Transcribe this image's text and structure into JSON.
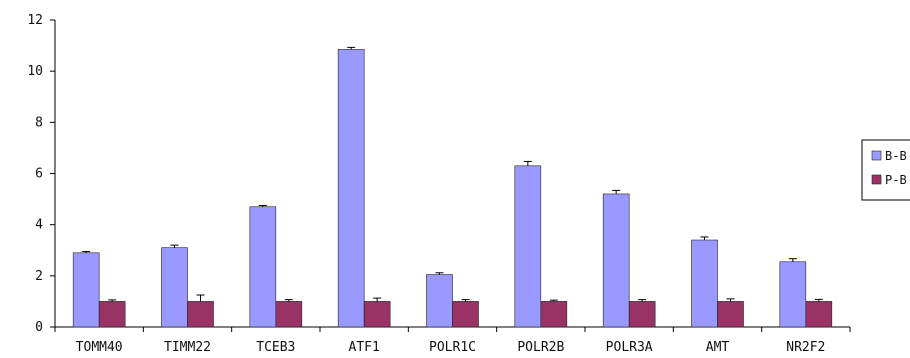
{
  "chart_data": {
    "type": "bar",
    "categories": [
      "TOMM40",
      "TIMM22",
      "TCEB3",
      "ATF1",
      "POLR1C",
      "POLR2B",
      "POLR3A",
      "AMT",
      "NR2F2"
    ],
    "series": [
      {
        "name": "B-B",
        "color": "#9999ff",
        "values": [
          2.9,
          3.1,
          4.7,
          10.85,
          2.05,
          6.3,
          5.2,
          3.4,
          2.55
        ],
        "errors": [
          0.05,
          0.1,
          0.05,
          0.08,
          0.07,
          0.17,
          0.14,
          0.12,
          0.12
        ]
      },
      {
        "name": "P-B",
        "color": "#993366",
        "values": [
          1,
          1,
          1,
          1,
          1,
          1,
          1,
          1,
          1
        ],
        "errors": [
          0.06,
          0.25,
          0.07,
          0.13,
          0.07,
          0.05,
          0.07,
          0.1,
          0.08
        ]
      }
    ],
    "ylim": [
      0,
      12
    ],
    "yticks": [
      "0",
      "2",
      "4",
      "6",
      "8",
      "10",
      "12"
    ],
    "grid": false,
    "legend": "right",
    "title": "",
    "xlabel": "",
    "ylabel": ""
  }
}
